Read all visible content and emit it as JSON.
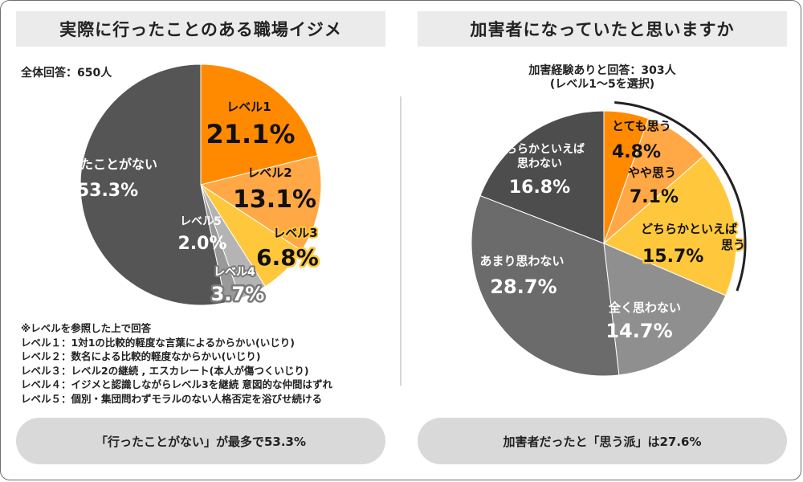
{
  "left": {
    "title": "実際に行ったことのある職場イジメ",
    "respondents": "全体回答：650人",
    "legend_note": "※レベルを参照した上で回答",
    "legend": [
      "レベル１：1対1の比較的軽度な言葉によるからかい(いじり)",
      "レベル２：数名による比較的軽度なからかい(いじり)",
      "レベル３：レベル2の継続 , エスカレート(本人が傷つくいじり)",
      "レベル４：イジメと認識しながらレベル3を継続 意図的な仲間はずれ",
      "レベル５：個別・集団問わずモラルのない人格否定を浴びせ続ける"
    ],
    "summary": "「行ったことがない」が最多で53.3%"
  },
  "right": {
    "title": "加害者になっていたと思いますか",
    "note_line1": "加害経験ありと回答：303人",
    "note_line2": "(レベル1～5を選択)",
    "summary": "加害者だったと「思う派」は27.6%"
  },
  "colors": {
    "orange": "#ff8a00",
    "light_orange": "#ffa845",
    "yellow": "#ffc83c",
    "grey_light": "#b4b4b4",
    "grey_mid": "#999999",
    "grey_dark": "#555555",
    "grey_darkest": "#4d4d4d",
    "grey_medium": "#6b6b6b",
    "grey_medium2": "#8f8f8f"
  },
  "chart_data": [
    {
      "type": "pie",
      "title": "実際に行ったことのある職場イジメ",
      "start_angle": "12 o'clock, clockwise",
      "slices": [
        {
          "label": "レベル1",
          "value": 21.1,
          "display": "21.1%",
          "color": "#ff8a00"
        },
        {
          "label": "レベル2",
          "value": 13.1,
          "display": "13.1%",
          "color": "#ffa845"
        },
        {
          "label": "レベル3",
          "value": 6.8,
          "display": "6.8%",
          "color": "#ffc83c"
        },
        {
          "label": "レベル4",
          "value": 3.7,
          "display": "3.7%",
          "color": "#b4b4b4"
        },
        {
          "label": "レベル5",
          "value": 2.0,
          "display": "2.0%",
          "color": "#999999"
        },
        {
          "label": "行ったことがない",
          "value": 53.3,
          "display": "53.3%",
          "color": "#555555"
        }
      ]
    },
    {
      "type": "pie",
      "title": "加害者になっていたと思いますか",
      "start_angle": "12 o'clock, clockwise",
      "slices": [
        {
          "label": "とても思う",
          "value": 4.8,
          "display": "4.8%",
          "color": "#ff8a00"
        },
        {
          "label": "やや思う",
          "value": 7.1,
          "display": "7.1%",
          "color": "#ffa845"
        },
        {
          "label": "どちらかといえば思う",
          "value": 15.7,
          "display": "15.7%",
          "color": "#ffc83c"
        },
        {
          "label": "全く思わない",
          "value": 14.7,
          "display": "14.7%",
          "color": "#8f8f8f"
        },
        {
          "label": "あまり思わない",
          "value": 28.7,
          "display": "28.7%",
          "color": "#6b6b6b"
        },
        {
          "label": "どちらかといえば思わない",
          "value": 16.8,
          "display": "16.8%",
          "color": "#4d4d4d"
        }
      ]
    }
  ]
}
